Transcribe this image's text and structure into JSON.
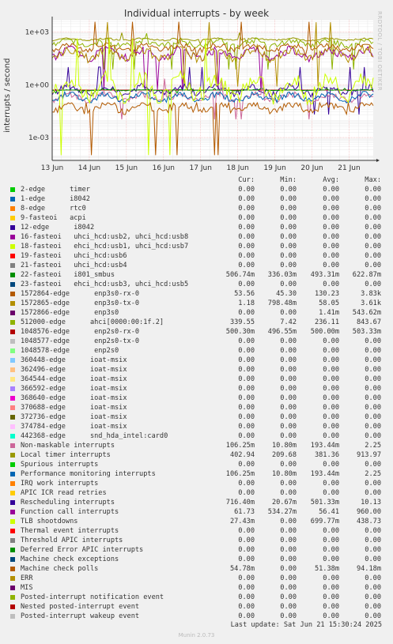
{
  "title": "Individual interrupts - by week",
  "side_label": "RRDTOOL / TOBI OETIKER",
  "ylabel": "interrupts / second",
  "legend_headers": {
    "cur": "Cur:",
    "min": "Min:",
    "avg": "Avg:",
    "max": "Max:"
  },
  "legend": [
    {
      "label": "2-edge      timer",
      "color": "#00cc00",
      "cur": "0.00",
      "min": "0.00",
      "avg": "0.00",
      "max": "0.00"
    },
    {
      "label": "1-edge      i8042",
      "color": "#0066b3",
      "cur": "0.00",
      "min": "0.00",
      "avg": "0.00",
      "max": "0.00"
    },
    {
      "label": "8-edge      rtc0",
      "color": "#ff8000",
      "cur": "0.00",
      "min": "0.00",
      "avg": "0.00",
      "max": "0.00"
    },
    {
      "label": "9-fasteoi   acpi",
      "color": "#ffcc00",
      "cur": "0.00",
      "min": "0.00",
      "avg": "0.00",
      "max": "0.00"
    },
    {
      "label": "12-edge      i8042",
      "color": "#330099",
      "cur": "0.00",
      "min": "0.00",
      "avg": "0.00",
      "max": "0.00"
    },
    {
      "label": "16-fasteoi   uhci_hcd:usb2, uhci_hcd:usb8",
      "color": "#990099",
      "cur": "0.00",
      "min": "0.00",
      "avg": "0.00",
      "max": "0.00"
    },
    {
      "label": "18-fasteoi   ehci_hcd:usb1, uhci_hcd:usb7",
      "color": "#ccff00",
      "cur": "0.00",
      "min": "0.00",
      "avg": "0.00",
      "max": "0.00"
    },
    {
      "label": "19-fasteoi   uhci_hcd:usb6",
      "color": "#ff0000",
      "cur": "0.00",
      "min": "0.00",
      "avg": "0.00",
      "max": "0.00"
    },
    {
      "label": "21-fasteoi   uhci_hcd:usb4",
      "color": "#808080",
      "cur": "0.00",
      "min": "0.00",
      "avg": "0.00",
      "max": "0.00"
    },
    {
      "label": "22-fasteoi   i801_smbus",
      "color": "#008f00",
      "cur": "506.74m",
      "min": "336.03m",
      "avg": "493.31m",
      "max": "622.87m"
    },
    {
      "label": "23-fasteoi   ehci_hcd:usb3, uhci_hcd:usb5",
      "color": "#00487d",
      "cur": "0.00",
      "min": "0.00",
      "avg": "0.00",
      "max": "0.00"
    },
    {
      "label": "1572864-edge      enp3s0-rx-0",
      "color": "#b35a00",
      "cur": "53.56",
      "min": "45.30",
      "avg": "130.23",
      "max": "3.83k"
    },
    {
      "label": "1572865-edge      enp3s0-tx-0",
      "color": "#b38f00",
      "cur": "1.18",
      "min": "798.48m",
      "avg": "58.05",
      "max": "3.61k"
    },
    {
      "label": "1572866-edge      enp3s0",
      "color": "#6b006b",
      "cur": "0.00",
      "min": "0.00",
      "avg": "1.41m",
      "max": "543.62m"
    },
    {
      "label": "512000-edge      ahci[0000:00:1f.2]",
      "color": "#8fb300",
      "cur": "339.55",
      "min": "7.42",
      "avg": "236.11",
      "max": "843.67"
    },
    {
      "label": "1048576-edge      enp2s0-rx-0",
      "color": "#b30000",
      "cur": "500.30m",
      "min": "496.55m",
      "avg": "500.00m",
      "max": "503.33m"
    },
    {
      "label": "1048577-edge      enp2s0-tx-0",
      "color": "#bebebe",
      "cur": "0.00",
      "min": "0.00",
      "avg": "0.00",
      "max": "0.00"
    },
    {
      "label": "1048578-edge      enp2s0",
      "color": "#80ff80",
      "cur": "0.00",
      "min": "0.00",
      "avg": "0.00",
      "max": "0.00"
    },
    {
      "label": "360448-edge      ioat-msix",
      "color": "#80c9ff",
      "cur": "0.00",
      "min": "0.00",
      "avg": "0.00",
      "max": "0.00"
    },
    {
      "label": "362496-edge      ioat-msix",
      "color": "#ffc080",
      "cur": "0.00",
      "min": "0.00",
      "avg": "0.00",
      "max": "0.00"
    },
    {
      "label": "364544-edge      ioat-msix",
      "color": "#ffe680",
      "cur": "0.00",
      "min": "0.00",
      "avg": "0.00",
      "max": "0.00"
    },
    {
      "label": "366592-edge      ioat-msix",
      "color": "#aa80ff",
      "cur": "0.00",
      "min": "0.00",
      "avg": "0.00",
      "max": "0.00"
    },
    {
      "label": "368640-edge      ioat-msix",
      "color": "#ee00cc",
      "cur": "0.00",
      "min": "0.00",
      "avg": "0.00",
      "max": "0.00"
    },
    {
      "label": "370688-edge      ioat-msix",
      "color": "#ff8080",
      "cur": "0.00",
      "min": "0.00",
      "avg": "0.00",
      "max": "0.00"
    },
    {
      "label": "372736-edge      ioat-msix",
      "color": "#666600",
      "cur": "0.00",
      "min": "0.00",
      "avg": "0.00",
      "max": "0.00"
    },
    {
      "label": "374784-edge      ioat-msix",
      "color": "#ffbfff",
      "cur": "0.00",
      "min": "0.00",
      "avg": "0.00",
      "max": "0.00"
    },
    {
      "label": "442368-edge      snd_hda_intel:card0",
      "color": "#00ffcc",
      "cur": "0.00",
      "min": "0.00",
      "avg": "0.00",
      "max": "0.00"
    },
    {
      "label": "Non-maskable interrupts",
      "color": "#cc6699",
      "cur": "106.25m",
      "min": "10.80m",
      "avg": "193.44m",
      "max": "2.25"
    },
    {
      "label": "Local timer interrupts",
      "color": "#999900",
      "cur": "402.94",
      "min": "209.68",
      "avg": "381.36",
      "max": "913.97"
    },
    {
      "label": "Spurious interrupts",
      "color": "#00cc00",
      "cur": "0.00",
      "min": "0.00",
      "avg": "0.00",
      "max": "0.00"
    },
    {
      "label": "Performance monitoring interrupts",
      "color": "#0066b3",
      "cur": "106.25m",
      "min": "10.80m",
      "avg": "193.44m",
      "max": "2.25"
    },
    {
      "label": "IRQ work interrupts",
      "color": "#ff8000",
      "cur": "0.00",
      "min": "0.00",
      "avg": "0.00",
      "max": "0.00"
    },
    {
      "label": "APIC ICR read retries",
      "color": "#ffcc00",
      "cur": "0.00",
      "min": "0.00",
      "avg": "0.00",
      "max": "0.00"
    },
    {
      "label": "Rescheduling interrupts",
      "color": "#330099",
      "cur": "716.40m",
      "min": "20.67m",
      "avg": "501.33m",
      "max": "10.13"
    },
    {
      "label": "Function call interrupts",
      "color": "#990099",
      "cur": "61.73",
      "min": "534.27m",
      "avg": "56.41",
      "max": "960.00"
    },
    {
      "label": "TLB shootdowns",
      "color": "#ccff00",
      "cur": "27.43m",
      "min": "0.00",
      "avg": "699.77m",
      "max": "438.73"
    },
    {
      "label": "Thermal event interrupts",
      "color": "#ff0000",
      "cur": "0.00",
      "min": "0.00",
      "avg": "0.00",
      "max": "0.00"
    },
    {
      "label": "Threshold APIC interrupts",
      "color": "#808080",
      "cur": "0.00",
      "min": "0.00",
      "avg": "0.00",
      "max": "0.00"
    },
    {
      "label": "Deferred Error APIC interrupts",
      "color": "#008f00",
      "cur": "0.00",
      "min": "0.00",
      "avg": "0.00",
      "max": "0.00"
    },
    {
      "label": "Machine check exceptions",
      "color": "#00487d",
      "cur": "0.00",
      "min": "0.00",
      "avg": "0.00",
      "max": "0.00"
    },
    {
      "label": "Machine check polls",
      "color": "#b35a00",
      "cur": "54.78m",
      "min": "0.00",
      "avg": "51.38m",
      "max": "94.18m"
    },
    {
      "label": "ERR",
      "color": "#b38f00",
      "cur": "0.00",
      "min": "0.00",
      "avg": "0.00",
      "max": "0.00"
    },
    {
      "label": "MIS",
      "color": "#6b006b",
      "cur": "0.00",
      "min": "0.00",
      "avg": "0.00",
      "max": "0.00"
    },
    {
      "label": "Posted-interrupt notification event",
      "color": "#8fb300",
      "cur": "0.00",
      "min": "0.00",
      "avg": "0.00",
      "max": "0.00"
    },
    {
      "label": "Nested posted-interrupt event",
      "color": "#b30000",
      "cur": "0.00",
      "min": "0.00",
      "avg": "0.00",
      "max": "0.00"
    },
    {
      "label": "Posted-interrupt wakeup event",
      "color": "#bebebe",
      "cur": "0.00",
      "min": "0.00",
      "avg": "0.00",
      "max": "0.00"
    }
  ],
  "last_update": "Last update: Sat Jun 21 15:30:24 2025",
  "munin_version": "Munin 2.0.73",
  "chart_data": {
    "type": "line",
    "title": "Individual interrupts - by week",
    "ylabel": "interrupts / second",
    "yscale": "log",
    "ylim": [
      5e-05,
      5000
    ],
    "y_ticks": [
      {
        "value": 1000,
        "label": "1e+03"
      },
      {
        "value": 1,
        "label": "1e+00"
      },
      {
        "value": 0.001,
        "label": "1e-03"
      }
    ],
    "x_ticks": [
      "13 Jun",
      "14 Jun",
      "15 Jun",
      "16 Jun",
      "17 Jun",
      "18 Jun",
      "19 Jun",
      "20 Jun",
      "21 Jun"
    ],
    "x_range_days": [
      0,
      8.65
    ],
    "grid": true,
    "series": [
      {
        "name": "Local timer interrupts",
        "color": "#999900",
        "baseline": 381.36,
        "low": 209.68,
        "high": 913.97
      },
      {
        "name": "512000-edge      ahci[0000:00:1f.2]",
        "color": "#8fb300",
        "baseline": 236.11,
        "low": 7.42,
        "high": 843.67
      },
      {
        "name": "1572864-edge      enp3s0-rx-0",
        "color": "#b35a00",
        "baseline": 130.23,
        "low": 45.3,
        "high": 3830
      },
      {
        "name": "Function call interrupts",
        "color": "#990099",
        "baseline": 56.41,
        "low": 0.53427,
        "high": 960.0
      },
      {
        "name": "1572865-edge      enp3s0-tx-0",
        "color": "#b38f00",
        "baseline": 58.05,
        "low": 0.79848,
        "high": 3610
      },
      {
        "name": "Rescheduling interrupts",
        "color": "#330099",
        "baseline": 0.50133,
        "low": 0.02067,
        "high": 10.13
      },
      {
        "name": "1048576-edge      enp2s0-rx-0",
        "color": "#b30000",
        "baseline": 0.5,
        "low": 0.49655,
        "high": 0.50333
      },
      {
        "name": "22-fasteoi   i801_smbus",
        "color": "#008f00",
        "baseline": 0.49331,
        "low": 0.33603,
        "high": 0.62287
      },
      {
        "name": "Non-maskable interrupts",
        "color": "#cc6699",
        "baseline": 0.19344,
        "low": 0.0108,
        "high": 2.25
      },
      {
        "name": "Performance monitoring interrupts",
        "color": "#0066b3",
        "baseline": 0.19344,
        "low": 0.0108,
        "high": 2.25
      },
      {
        "name": "TLB shootdowns",
        "color": "#ccff00",
        "baseline": 0.69977,
        "low": 0.0001,
        "high": 438.73
      },
      {
        "name": "Machine check polls",
        "color": "#b35a00",
        "baseline": 0.05138,
        "low": 0.0001,
        "high": 0.09418
      }
    ]
  }
}
